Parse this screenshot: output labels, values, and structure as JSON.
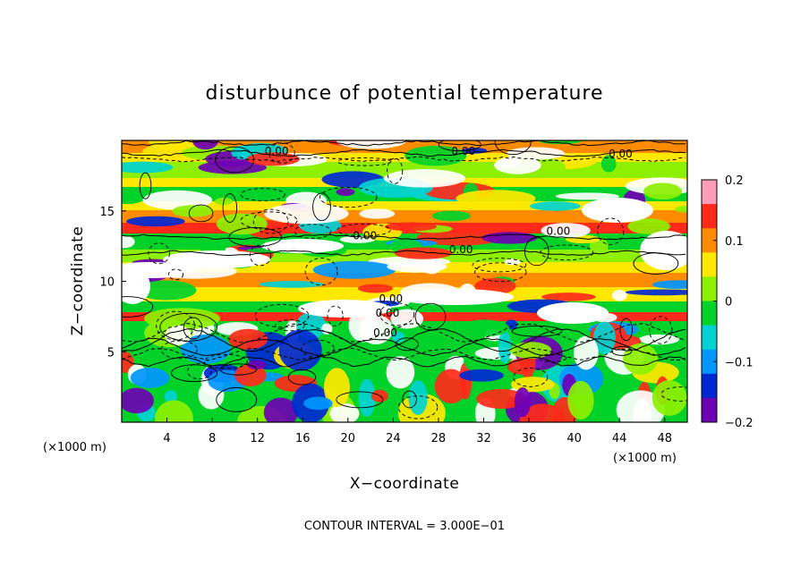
{
  "chart_data": {
    "type": "heatmap",
    "title": "disturbunce of potential temperature",
    "xlabel": "X−coordinate",
    "ylabel": "Z−coordinate",
    "x_unit": "(×1000 m)",
    "y_unit": "(×1000 m)",
    "xlim": [
      0,
      50
    ],
    "ylim": [
      0,
      20
    ],
    "x_ticks": [
      4,
      8,
      12,
      16,
      20,
      24,
      28,
      32,
      36,
      40,
      44,
      48
    ],
    "x_tick_labels": [
      "4",
      "8",
      "12",
      "16",
      "20",
      "24",
      "28",
      "32",
      "36",
      "40",
      "44",
      "48"
    ],
    "y_ticks": [
      5,
      10,
      15
    ],
    "y_tick_labels": [
      "5",
      "10",
      "15"
    ],
    "colorbar": {
      "range": [
        -0.2,
        0.2
      ],
      "ticks": [
        0.2,
        0.1,
        0,
        -0.1,
        -0.2
      ],
      "tick_labels": [
        "0.2",
        "0.1",
        "0",
        "−0.1",
        "−0.2"
      ],
      "colors": [
        "#ff9db9",
        "#ff2a1a",
        "#ff8c00",
        "#ffe800",
        "#8cf000",
        "#00d22a",
        "#00d2d2",
        "#0096ff",
        "#0028d2",
        "#6e00b4"
      ]
    },
    "contour_interval_label": "CONTOUR INTERVAL = 3.000E−01",
    "contour_labels": [
      {
        "x": 13.7,
        "y": 19.0,
        "text": "0.00"
      },
      {
        "x": 30.2,
        "y": 19.0,
        "text": "0.00"
      },
      {
        "x": 44.1,
        "y": 18.8,
        "text": "0.00"
      },
      {
        "x": 21.5,
        "y": 13.0,
        "text": "0.00"
      },
      {
        "x": 38.6,
        "y": 13.3,
        "text": "0.00"
      },
      {
        "x": 30.0,
        "y": 12.0,
        "text": "0.00"
      },
      {
        "x": 23.8,
        "y": 8.5,
        "text": "0.00"
      },
      {
        "x": 23.5,
        "y": 7.5,
        "text": "0.00"
      },
      {
        "x": 23.3,
        "y": 6.1,
        "text": "0.00"
      }
    ]
  }
}
